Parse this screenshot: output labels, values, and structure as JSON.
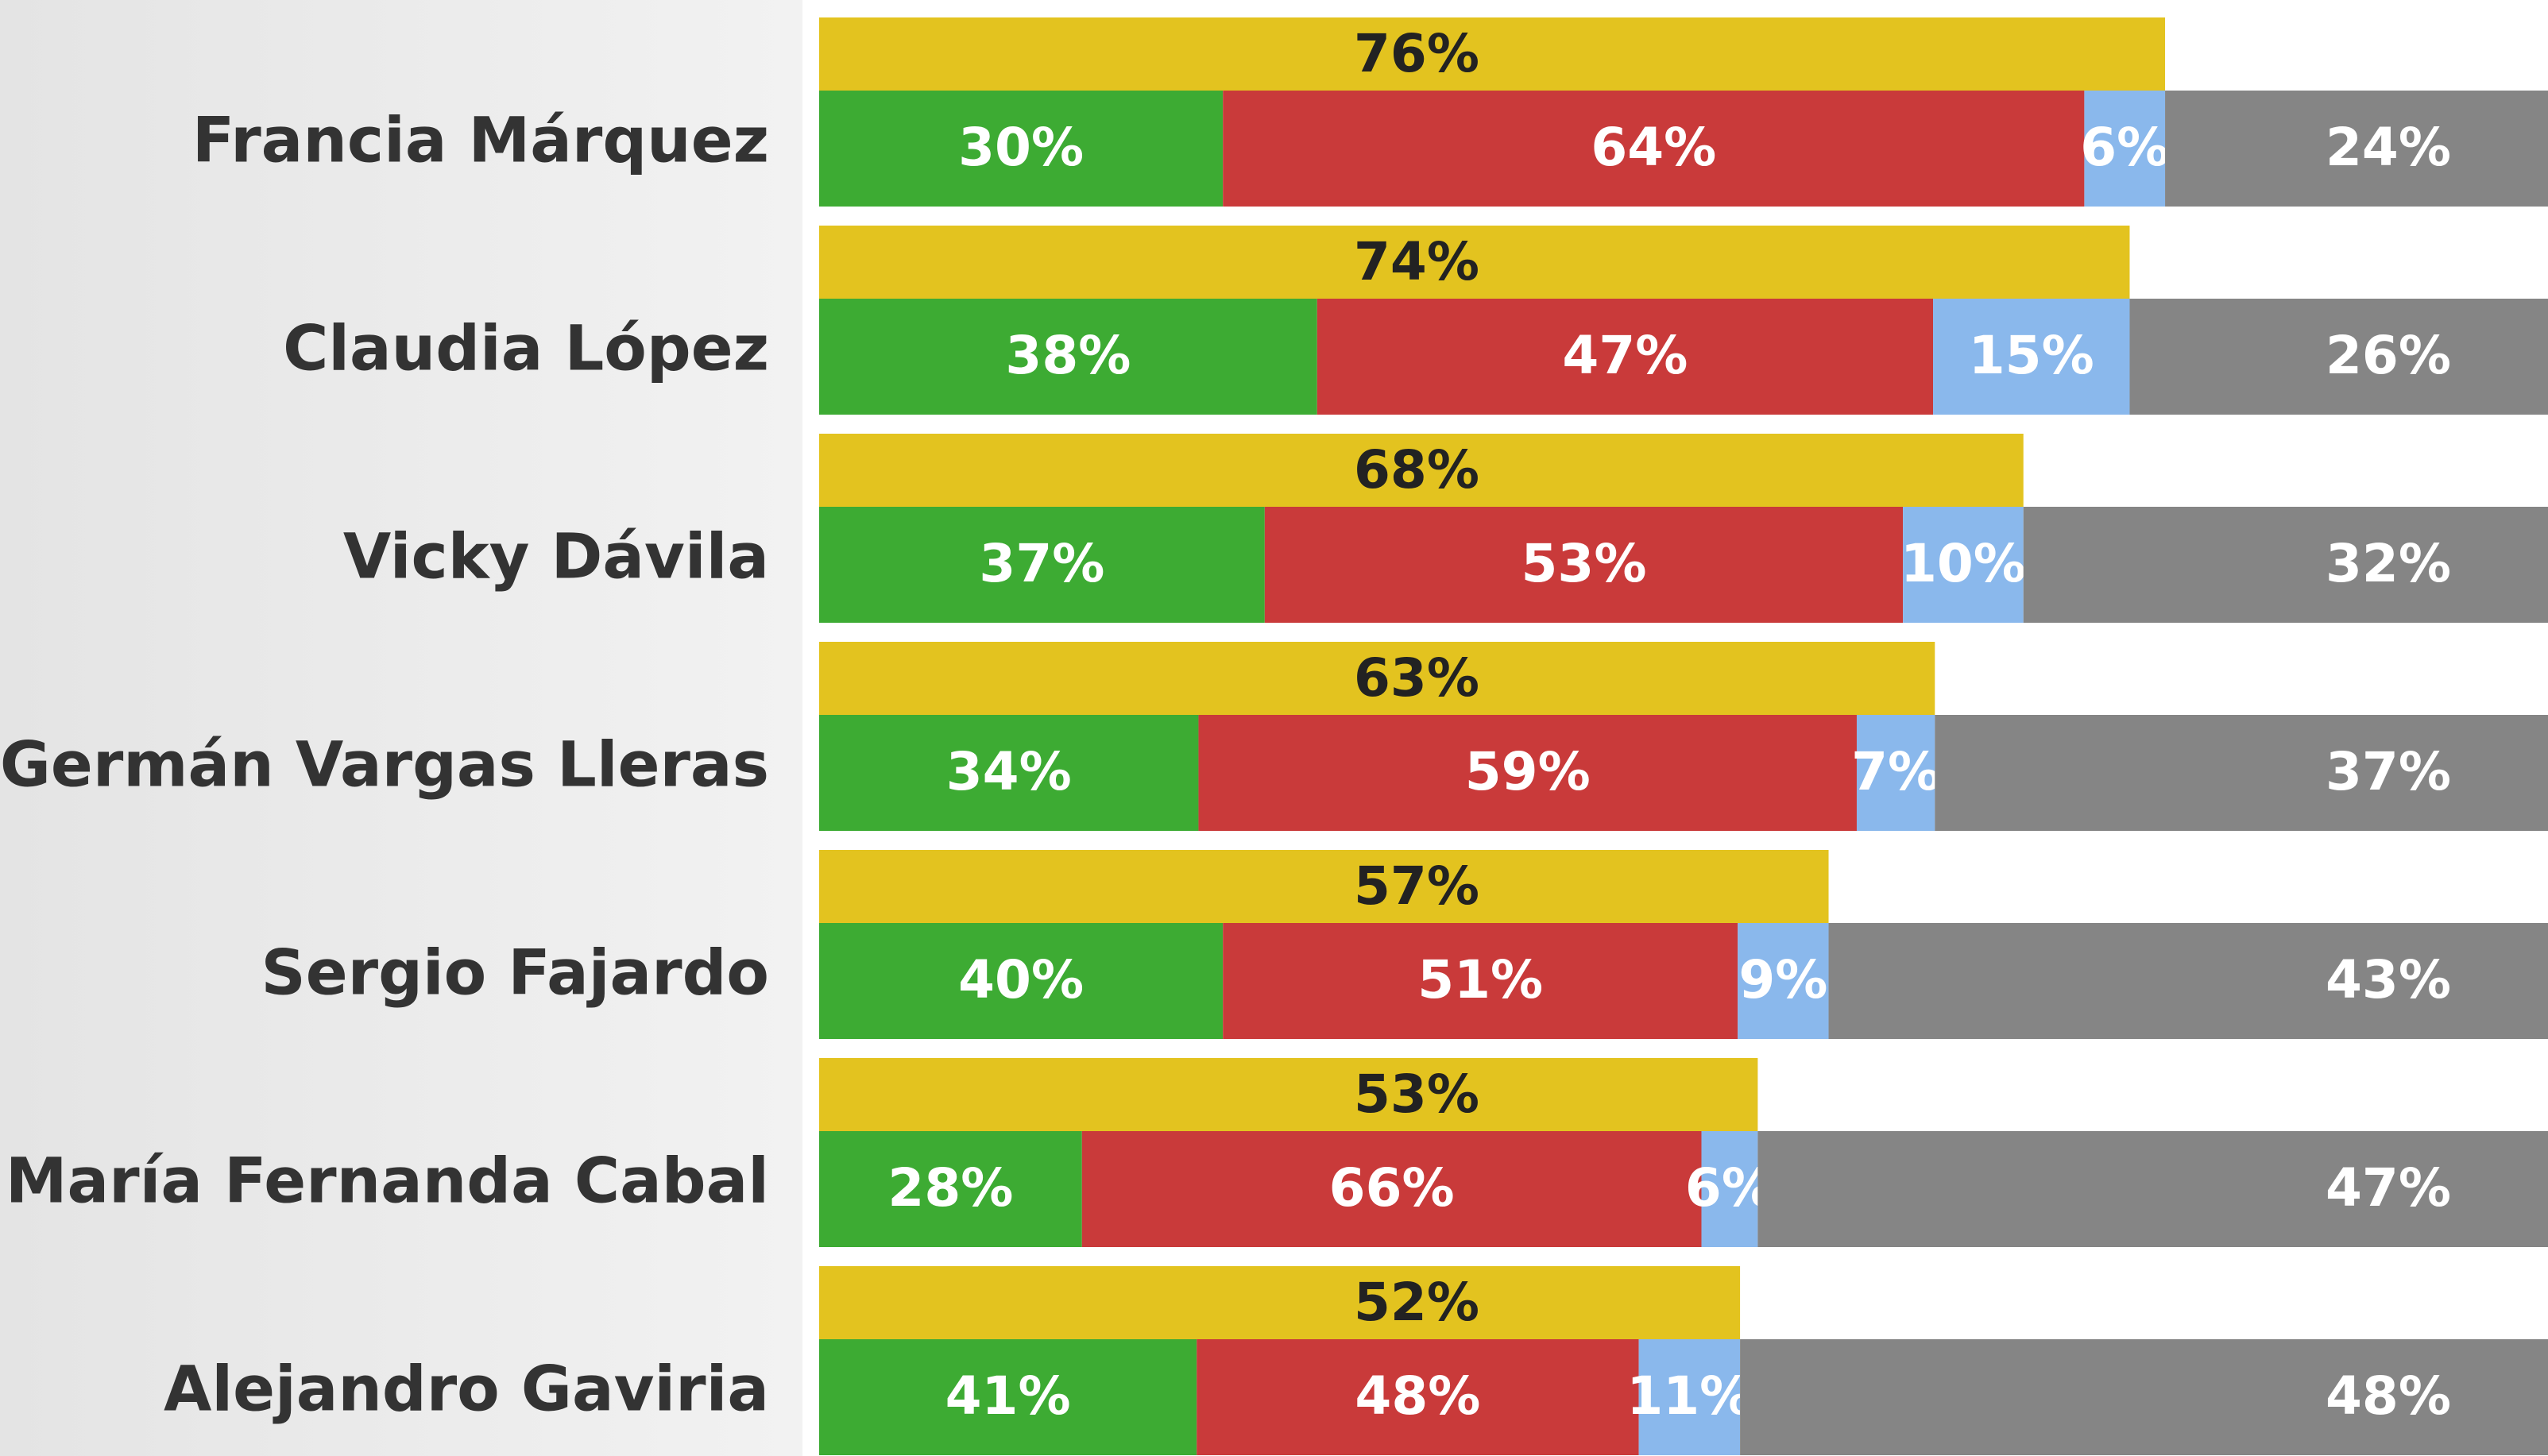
{
  "chart_data": {
    "type": "stacked-bar",
    "categories": [
      "Francia Márquez",
      "Claudia López",
      "Vicky Dávila",
      "Germán Vargas Lleras",
      "Sergio Fajardo",
      "María Fernanda Cabal",
      "Alejandro Gaviria"
    ],
    "series": [
      {
        "color": "#e3c31f",
        "values": [
          76,
          74,
          68,
          63,
          57,
          53,
          52
        ],
        "value_labels": [
          "76%",
          "74%",
          "68%",
          "63%",
          "57%",
          "53%",
          "52%"
        ]
      },
      {
        "color": "#3dab33",
        "values": [
          30,
          38,
          37,
          34,
          40,
          28,
          41
        ],
        "value_labels": [
          "30%",
          "38%",
          "37%",
          "34%",
          "40%",
          "28%",
          "41%"
        ]
      },
      {
        "color": "#c93a3a",
        "values": [
          64,
          47,
          53,
          59,
          51,
          66,
          48
        ],
        "value_labels": [
          "64%",
          "47%",
          "53%",
          "59%",
          "51%",
          "66%",
          "48%"
        ]
      },
      {
        "color": "#8ab8ec",
        "values": [
          6,
          15,
          10,
          7,
          9,
          6,
          11
        ],
        "value_labels": [
          "6%",
          "15%",
          "10%",
          "7%",
          "9%",
          "6%",
          "11%"
        ]
      },
      {
        "color": "#858585",
        "values": [
          24,
          26,
          32,
          37,
          43,
          47,
          48
        ],
        "value_labels": [
          "24%",
          "26%",
          "32%",
          "37%",
          "43%",
          "47%",
          "48%"
        ]
      }
    ]
  }
}
